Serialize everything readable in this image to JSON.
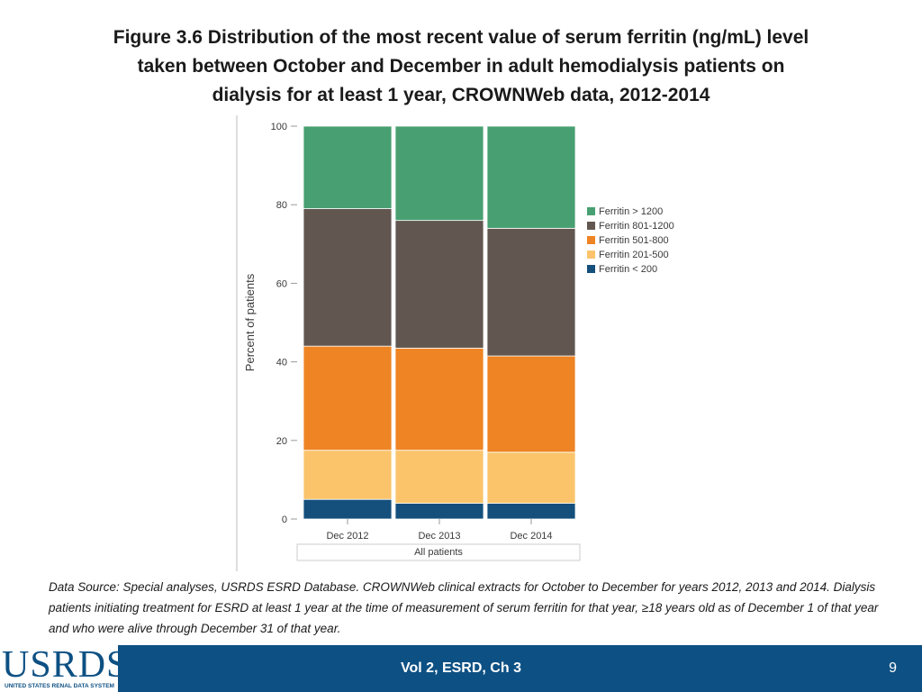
{
  "slide": {
    "title_lines": [
      "Figure 3.6 Distribution of the most recent value of serum ferritin (ng/mL) level",
      "taken between October and December in adult hemodialysis patients on",
      "dialysis for at least 1 year, CROWNWeb data, 2012-2014"
    ],
    "source_text": "Data Source:  Special analyses, USRDS ESRD Database. CROWNWeb clinical extracts for October to December for years 2012, 2013 and 2014. Dialysis patients initiating treatment for ESRD at least 1 year at the time of measurement of serum ferritin for that year, ≥18 years old as of December 1 of that year and who were alive through December 31 of that year.",
    "footer_center": "Vol 2, ESRD, Ch 3",
    "page_number": "9",
    "logo_text": "USRDS",
    "logo_subtext": "UNITED STATES RENAL DATA SYSTEM",
    "footer_color": "#0d5083"
  },
  "chart_data": {
    "type": "bar",
    "stacked": true,
    "title": "",
    "ylabel": "Percent of patients",
    "xlabel": "",
    "group_label": "All patients",
    "ylim": [
      0,
      100
    ],
    "yticks": [
      0,
      20,
      40,
      60,
      80,
      100
    ],
    "categories": [
      "Dec 2012",
      "Dec 2013",
      "Dec 2014"
    ],
    "legend_position": "right",
    "series": [
      {
        "name": "Ferritin < 200",
        "color": "#15507c",
        "values": [
          5,
          4,
          4
        ]
      },
      {
        "name": "Ferritin 201-500",
        "color": "#fbc46b",
        "values": [
          12.5,
          13.5,
          13
        ]
      },
      {
        "name": "Ferritin 501-800",
        "color": "#ee8423",
        "values": [
          26.5,
          26,
          24.5
        ]
      },
      {
        "name": "Ferritin 801-1200",
        "color": "#625750",
        "values": [
          35,
          32.5,
          32.5
        ]
      },
      {
        "name": "Ferritin > 1200",
        "color": "#48a072",
        "values": [
          21,
          24,
          26
        ]
      }
    ]
  }
}
